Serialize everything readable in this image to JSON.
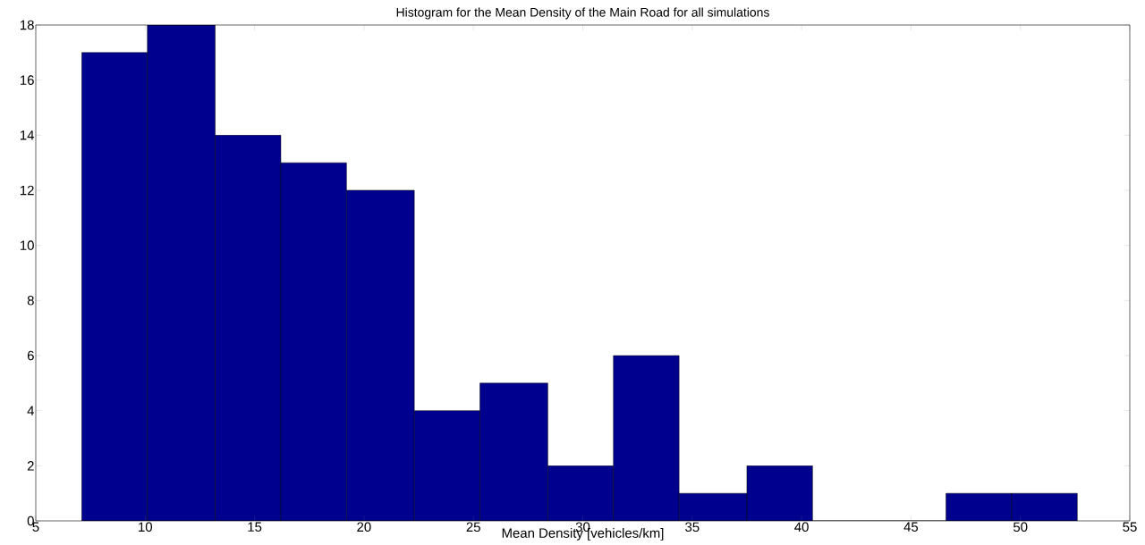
{
  "chart_data": {
    "type": "histogram",
    "title": "Histogram for the Mean Density of the Main Road for all simulations",
    "xlabel": "Mean Density [vehicles/km]",
    "bins": [
      7.1,
      10.1,
      13.2,
      16.2,
      19.2,
      22.3,
      25.3,
      28.4,
      31.4,
      34.4,
      37.5,
      40.5,
      46.6,
      49.6,
      52.6
    ],
    "values": [
      17,
      18,
      14,
      13,
      12,
      4,
      5,
      2,
      6,
      1,
      2,
      0,
      1,
      1
    ],
    "color": "#00008f",
    "xlim": [
      5,
      55
    ],
    "ylim": [
      0,
      18
    ],
    "xticks": [
      5,
      10,
      15,
      20,
      25,
      30,
      35,
      40,
      45,
      50,
      55
    ],
    "yticks": [
      0,
      2,
      4,
      6,
      8,
      10,
      12,
      14,
      16,
      18
    ],
    "grid": false
  }
}
